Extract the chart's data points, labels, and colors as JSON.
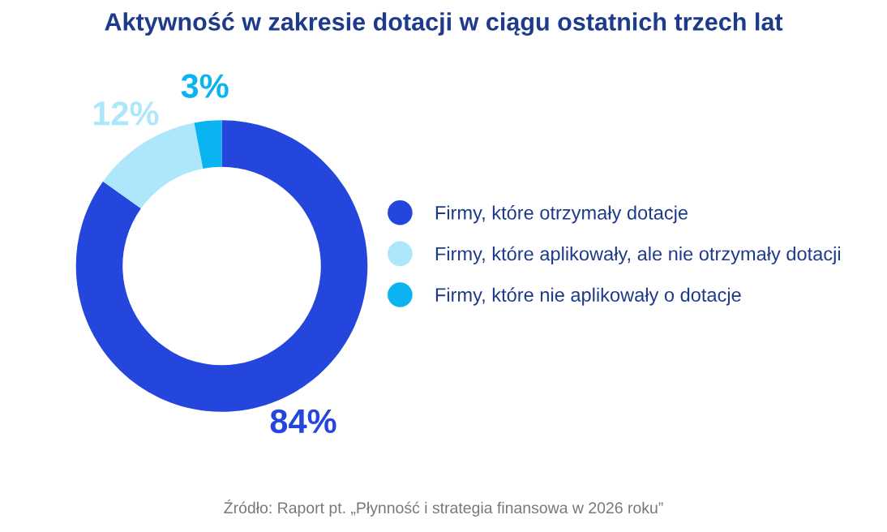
{
  "chart_data": {
    "type": "donut",
    "title": "Aktywność w zakresie dotacji w ciągu ostatnich trzech lat",
    "categories": [
      "Firmy, które otrzymały dotacje",
      "Firmy, które aplikowały, ale nie otrzymały dotacji",
      "Firmy, które nie aplikowały o dotacje"
    ],
    "values": [
      84,
      12,
      3
    ],
    "colors": [
      "#2446dc",
      "#aee6fb",
      "#0ab4f0"
    ],
    "value_labels": [
      "84%",
      "12%",
      "3%"
    ],
    "legend": "right",
    "annotations": [
      "Źródło: Raport pt. „Płynność i strategia finansowa w 2026 roku”"
    ]
  }
}
